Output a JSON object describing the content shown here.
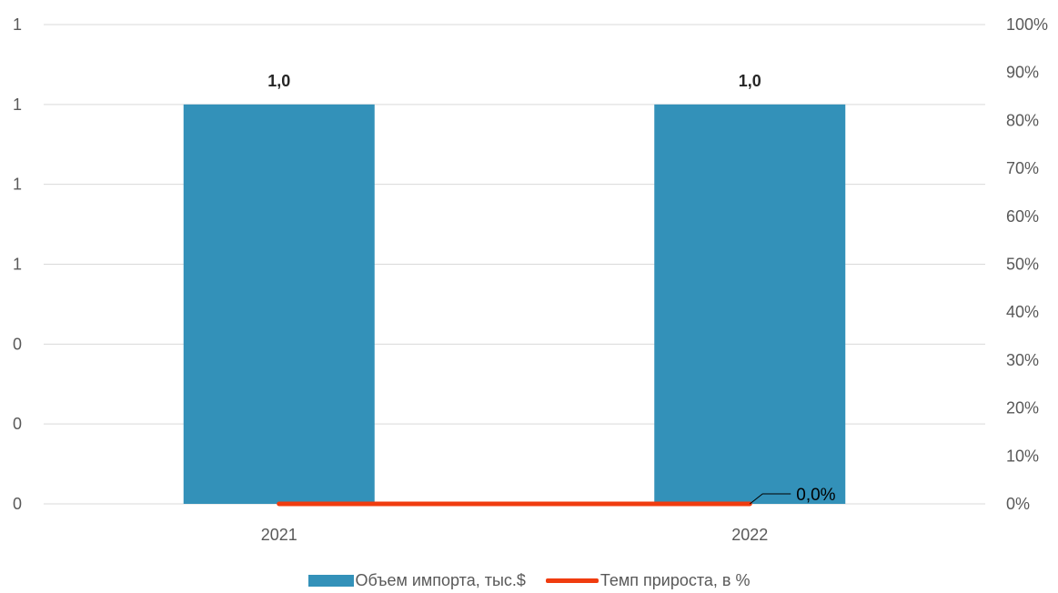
{
  "chart_data": {
    "type": "bar",
    "categories": [
      "2021",
      "2022"
    ],
    "series": [
      {
        "name": "Объем импорта, тыс.$",
        "kind": "bar",
        "axis": "left",
        "values": [
          1.0,
          1.0
        ],
        "labels": [
          "1,0",
          "1,0"
        ]
      },
      {
        "name": "Темп прироста, в %",
        "kind": "line",
        "axis": "right",
        "values": [
          0,
          0
        ],
        "point_labels": [
          "",
          "0,0%"
        ]
      }
    ],
    "y_left": {
      "ticks": [
        "0",
        "0",
        "0",
        "1",
        "1",
        "1",
        "1"
      ],
      "range": [
        0,
        1.2
      ]
    },
    "y_right": {
      "ticks": [
        "0%",
        "10%",
        "20%",
        "30%",
        "40%",
        "50%",
        "60%",
        "70%",
        "80%",
        "90%",
        "100%"
      ],
      "range": [
        0,
        100
      ]
    },
    "grid": true,
    "legend_position": "bottom",
    "colors": {
      "bar": "#3391B9",
      "line": "#F03C0F",
      "grid": "#D9D9D9",
      "tick": "#595959"
    }
  }
}
